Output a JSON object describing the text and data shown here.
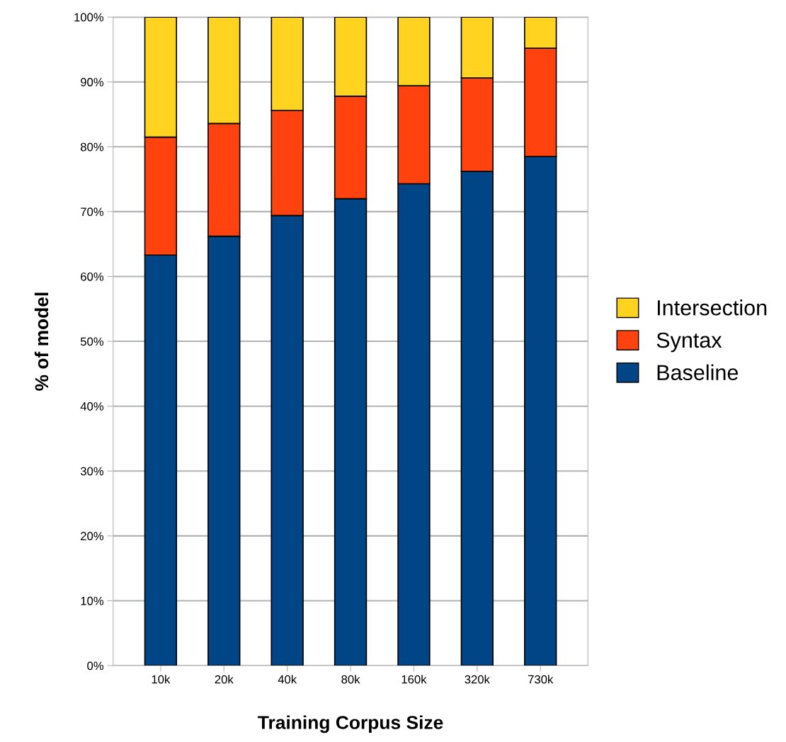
{
  "chart_data": {
    "type": "bar",
    "stacked": true,
    "xlabel": "Training Corpus Size",
    "ylabel": "% of model",
    "categories": [
      "10k",
      "20k",
      "40k",
      "80k",
      "160k",
      "320k",
      "730k"
    ],
    "series": [
      {
        "name": "Baseline",
        "color": "#004586",
        "values": [
          63.3,
          66.2,
          69.4,
          72.0,
          74.3,
          76.2,
          78.5
        ]
      },
      {
        "name": "Syntax",
        "color": "#ff420e",
        "values": [
          18.2,
          17.4,
          16.2,
          15.8,
          15.1,
          14.4,
          16.7
        ]
      },
      {
        "name": "Intersection",
        "color": "#ffd320",
        "values": [
          18.5,
          16.4,
          14.4,
          12.2,
          10.6,
          9.4,
          4.8
        ]
      }
    ],
    "ylim": [
      0,
      100
    ],
    "yticks": [
      {
        "value": 0,
        "label": "0%"
      },
      {
        "value": 10,
        "label": "10%"
      },
      {
        "value": 20,
        "label": "20%"
      },
      {
        "value": 30,
        "label": "30%"
      },
      {
        "value": 40,
        "label": "40%"
      },
      {
        "value": 50,
        "label": "50%"
      },
      {
        "value": 60,
        "label": "60%"
      },
      {
        "value": 70,
        "label": "70%"
      },
      {
        "value": 80,
        "label": "80%"
      },
      {
        "value": 90,
        "label": "90%"
      },
      {
        "value": 100,
        "label": "100%"
      }
    ],
    "grid": "y",
    "legend": "right"
  }
}
